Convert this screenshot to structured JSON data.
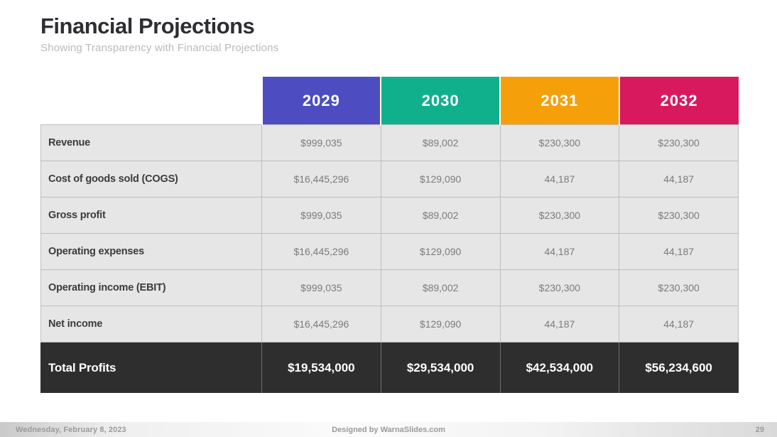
{
  "slide": {
    "title": "Financial Projections",
    "subtitle": "Showing Transparency with Financial Projections"
  },
  "colors": {
    "col_2029": "#4d4dc1",
    "col_2030": "#10b08d",
    "col_2031": "#f5a00b",
    "col_2032": "#d9195e",
    "total_row_bg": "#2e2e2e",
    "cell_bg": "#e6e6e6"
  },
  "chart_data": {
    "type": "table",
    "title": "Financial Projections",
    "columns": [
      "2029",
      "2030",
      "2031",
      "2032"
    ],
    "column_colors": [
      "#4d4dc1",
      "#10b08d",
      "#f5a00b",
      "#d9195e"
    ],
    "rows": [
      {
        "label": "Revenue",
        "values": [
          "$999,035",
          "$89,002",
          "$230,300",
          "$230,300"
        ]
      },
      {
        "label": "Cost of goods sold (COGS)",
        "values": [
          "$16,445,296",
          "$129,090",
          "44,187",
          "44,187"
        ]
      },
      {
        "label": "Gross profit",
        "values": [
          "$999,035",
          "$89,002",
          "$230,300",
          "$230,300"
        ]
      },
      {
        "label": "Operating expenses",
        "values": [
          "$16,445,296",
          "$129,090",
          "44,187",
          "44,187"
        ]
      },
      {
        "label": "Operating income (EBIT)",
        "values": [
          "$999,035",
          "$89,002",
          "$230,300",
          "$230,300"
        ]
      },
      {
        "label": "Net income",
        "values": [
          "$16,445,296",
          "$129,090",
          "44,187",
          "44,187"
        ]
      }
    ],
    "total": {
      "label": "Total Profits",
      "values": [
        "$19,534,000",
        "$29,534,000",
        "$42,534,000",
        "$56,234,600"
      ]
    }
  },
  "footer": {
    "date": "Wednesday, February 8, 2023",
    "credit": "Designed by WarnaSlides.com",
    "page": "29"
  }
}
